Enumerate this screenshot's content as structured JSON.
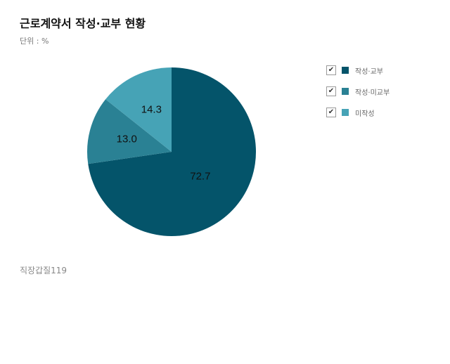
{
  "title": "근로계약서 작성·교부 현황",
  "unit": "단위 : %",
  "source": "직장갑질119",
  "check_glyph": "✔",
  "chart_data": {
    "type": "pie",
    "title": "근로계약서 작성·교부 현황",
    "unit": "%",
    "legend_position": "top-right",
    "series": [
      {
        "name": "작성·교부",
        "value": 72.7,
        "label": "72.7",
        "color": "#04546a"
      },
      {
        "name": "작성·미교부",
        "value": 13.0,
        "label": "13.0",
        "color": "#2a8194"
      },
      {
        "name": "미작성",
        "value": 14.3,
        "label": "14.3",
        "color": "#46a3b6"
      }
    ]
  }
}
